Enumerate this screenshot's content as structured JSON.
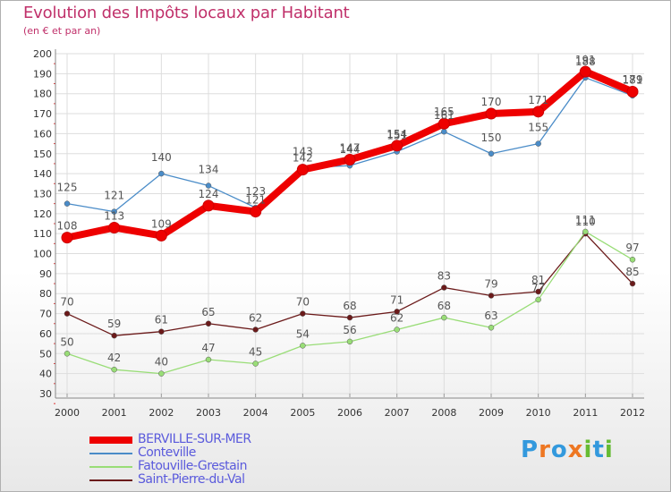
{
  "title": "Evolution des Impôts locaux par Habitant",
  "subtitle": "(en € et par an)",
  "brand": {
    "letters": [
      "P",
      "r",
      "o",
      "x",
      "i",
      "t",
      "i"
    ],
    "colors": [
      "#3399dd",
      "#ee7722",
      "#3399dd",
      "#ee7722",
      "#66bb33",
      "#3399dd",
      "#66bb33"
    ]
  },
  "chart_data": {
    "type": "line",
    "title": "Evolution des Impôts locaux par Habitant",
    "subtitle": "(en € et par an)",
    "xlabel": "",
    "ylabel": "",
    "x": [
      "2000",
      "2001",
      "2002",
      "2003",
      "2004",
      "2005",
      "2006",
      "2007",
      "2008",
      "2009",
      "2010",
      "2011",
      "2012"
    ],
    "ylim": [
      30,
      200
    ],
    "yticks": [
      "30",
      "40",
      "50",
      "60",
      "70",
      "80",
      "90",
      "100",
      "110",
      "120",
      "130",
      "140",
      "150",
      "160",
      "170",
      "180",
      "190",
      "200"
    ],
    "grid": true,
    "legend_position": "bottom-left",
    "series": [
      {
        "name": "BERVILLE-SUR-MER",
        "color": "#ee0000",
        "width": 8,
        "values": [
          108,
          113,
          109,
          124,
          121,
          142,
          147,
          154,
          165,
          170,
          171,
          191,
          181
        ],
        "labels": [
          "108",
          "113",
          "109",
          "124",
          "121",
          "142",
          "147",
          "154",
          "165",
          "170",
          "171",
          "191",
          "181"
        ]
      },
      {
        "name": "Conteville",
        "color": "#4a8cc8",
        "width": 1.3,
        "values": [
          125,
          121,
          140,
          134,
          123,
          143,
          144,
          151,
          161,
          150,
          155,
          188,
          179
        ],
        "labels": [
          "125",
          "121",
          "140",
          "134",
          "123",
          "143",
          "144",
          "151",
          "161",
          "150",
          "155",
          "188",
          "179"
        ]
      },
      {
        "name": "Fatouville-Grestain",
        "color": "#99dd77",
        "width": 1.3,
        "values": [
          50,
          42,
          40,
          47,
          45,
          54,
          56,
          62,
          68,
          63,
          77,
          111,
          97
        ],
        "labels": [
          "50",
          "42",
          "40",
          "47",
          "45",
          "54",
          "56",
          "62",
          "68",
          "63",
          "77",
          "111",
          "97"
        ]
      },
      {
        "name": "Saint-Pierre-du-Val",
        "color": "#6b1a1a",
        "width": 1.3,
        "values": [
          70,
          59,
          61,
          65,
          62,
          70,
          68,
          71,
          83,
          79,
          81,
          110,
          85
        ],
        "labels": [
          "70",
          "59",
          "61",
          "65",
          "62",
          "70",
          "68",
          "71",
          "83",
          "79",
          "81",
          "110",
          "85"
        ]
      }
    ]
  }
}
